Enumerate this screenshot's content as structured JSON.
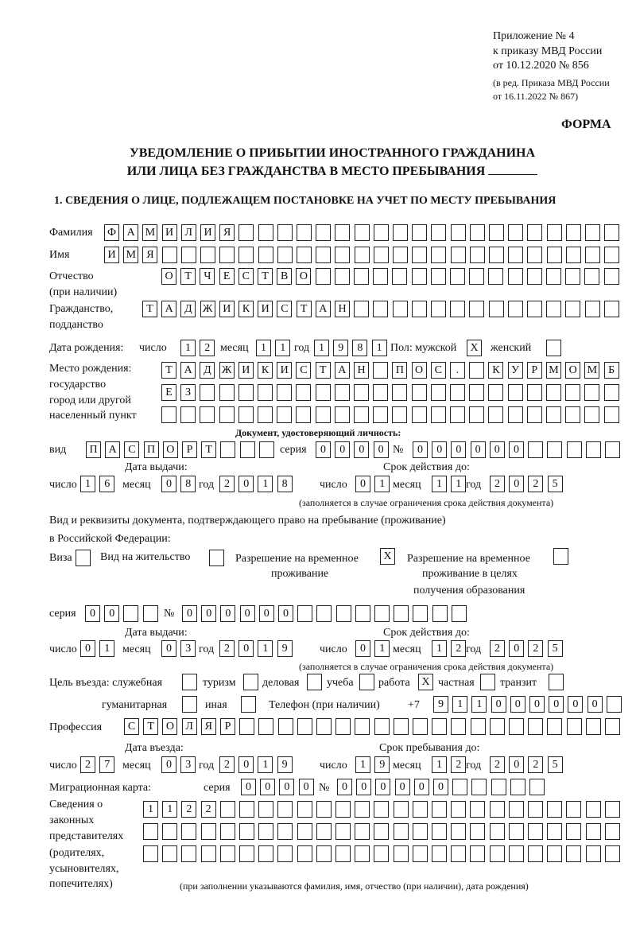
{
  "header": {
    "appendix": "Приложение № 4",
    "order": "к приказу МВД России",
    "order_date": "от 10.12.2020 № 856",
    "revision_1": "(в ред. Приказа МВД России",
    "revision_2": "от 16.11.2022 № 867)",
    "form_label": "ФОРМА"
  },
  "title": {
    "line1": "УВЕДОМЛЕНИЕ О ПРИБЫТИИ ИНОСТРАННОГО ГРАЖДАНИНА",
    "line2": "ИЛИ ЛИЦА БЕЗ ГРАЖДАНСТВА В МЕСТО ПРЕБЫВАНИЯ"
  },
  "section1": {
    "heading": "1. СВЕДЕНИЯ О ЛИЦЕ, ПОДЛЕЖАЩЕМ ПОСТАНОВКЕ НА УЧЕТ ПО МЕСТУ ПРЕБЫВАНИЯ"
  },
  "labels": {
    "surname": "Фамилия",
    "name": "Имя",
    "patronymic_1": "Отчество",
    "patronymic_2": "(при наличии)",
    "citizenship_1": "Гражданство,",
    "citizenship_2": "подданство",
    "birth_date": "Дата рождения:",
    "day": "число",
    "month": "месяц",
    "year": "год",
    "sex_male": "Пол: мужской",
    "sex_female": "женский",
    "birth_place_1": "Место рождения:",
    "birth_place_2": "государство",
    "birth_place_3": "город или другой",
    "birth_place_4": "населенный пункт",
    "id_doc": "Документ, удостоверяющий личность:",
    "kind": "вид",
    "series": "серия",
    "number": "№",
    "issue_date": "Дата выдачи:",
    "valid_until": "Срок действия до:",
    "validity_note": "(заполняется в случае ограничения срока действия документа)",
    "right_doc_1": "Вид и реквизиты документа, подтверждающего право на пребывание (проживание)",
    "right_doc_2": "в Российской Федерации:",
    "visa": "Виза",
    "residence_permit": "Вид на жительство",
    "temp_residence_1": "Разрешение на временное",
    "temp_residence_2": "проживание",
    "temp_edu_1": "Разрешение на временное",
    "temp_edu_2": "проживание в целях",
    "temp_edu_3": "получения образования",
    "purpose": "Цель въезда: служебная",
    "tourism": "туризм",
    "business": "деловая",
    "study": "учеба",
    "work": "работа",
    "private": "частная",
    "transit": "транзит",
    "humanitarian": "гуманитарная",
    "other": "иная",
    "phone": "Телефон (при наличии)",
    "phone_prefix": "+7",
    "profession": "Профессия",
    "entry_date": "Дата въезда:",
    "stay_until": "Срок пребывания до:",
    "migration_card": "Миграционная карта:",
    "reps_1": "Сведения о",
    "reps_2": "законных",
    "reps_3": "представителях",
    "reps_4": "(родителях,",
    "reps_5": "усыновителях,",
    "reps_6": "попечителях)",
    "reps_note": "(при заполнении указываются фамилия, имя, отчество (при наличии), дата рождения)"
  },
  "fields": {
    "surname": "ФАМИЛИЯ",
    "name": "ИМЯ",
    "patronymic": "ОТЧЕСТВО",
    "citizenship": "ТАДЖИКИСТАН",
    "birth_day": "12",
    "birth_month": "11",
    "birth_year": "1981",
    "sex_male": "X",
    "sex_female": "",
    "birth_place_1": "ТАДЖИКИСТАН ПОС. КУРМОМБ",
    "birth_place_2": "ЕЗ",
    "birth_place_3": "",
    "id_kind": "ПАСПОРТ",
    "id_series": "0000",
    "id_number": "000000",
    "id_issue_day": "16",
    "id_issue_month": "08",
    "id_issue_year": "2018",
    "id_valid_day": "01",
    "id_valid_month": "11",
    "id_valid_year": "2025",
    "visa": "",
    "residence_permit": "",
    "temp_residence": "X",
    "temp_edu": "",
    "rd_series": "00",
    "rd_number": "000000",
    "rd_issue_day": "01",
    "rd_issue_month": "03",
    "rd_issue_year": "2019",
    "rd_valid_day": "01",
    "rd_valid_month": "12",
    "rd_valid_year": "2025",
    "p_service": "",
    "p_tourism": "",
    "p_business": "",
    "p_study": "",
    "p_work": "X",
    "p_private": "",
    "p_transit": "",
    "p_humanitarian": "",
    "p_other": "",
    "phone": "911000000",
    "profession": "СТОЛЯР",
    "entry_day": "27",
    "entry_month": "03",
    "entry_year": "2019",
    "stay_day": "19",
    "stay_month": "12",
    "stay_year": "2025",
    "mc_series": "0000",
    "mc_number": "000000",
    "reps_1": "1122",
    "reps_2": "",
    "reps_3": ""
  }
}
